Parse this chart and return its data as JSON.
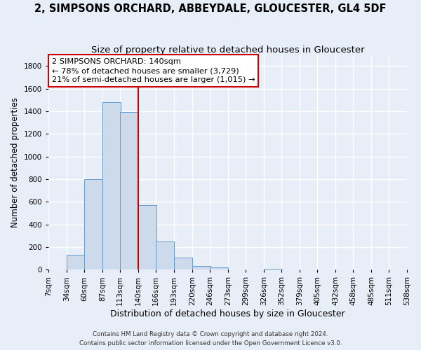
{
  "title": "2, SIMPSONS ORCHARD, ABBEYDALE, GLOUCESTER, GL4 5DF",
  "subtitle": "Size of property relative to detached houses in Gloucester",
  "xlabel": "Distribution of detached houses by size in Gloucester",
  "ylabel": "Number of detached properties",
  "bin_labels": [
    "7sqm",
    "34sqm",
    "60sqm",
    "87sqm",
    "113sqm",
    "140sqm",
    "166sqm",
    "193sqm",
    "220sqm",
    "246sqm",
    "273sqm",
    "299sqm",
    "326sqm",
    "352sqm",
    "379sqm",
    "405sqm",
    "432sqm",
    "458sqm",
    "485sqm",
    "511sqm",
    "538sqm"
  ],
  "bin_edges": [
    7,
    34,
    60,
    87,
    113,
    140,
    166,
    193,
    220,
    246,
    273,
    299,
    326,
    352,
    379,
    405,
    432,
    458,
    485,
    511,
    538
  ],
  "bar_heights": [
    0,
    130,
    800,
    1480,
    1390,
    570,
    250,
    110,
    30,
    20,
    0,
    0,
    5,
    0,
    0,
    0,
    0,
    0,
    0,
    0
  ],
  "bar_color": "#ccdaec",
  "bar_edge_color": "#6699cc",
  "vline_x": 140,
  "vline_color": "#cc0000",
  "annotation_title": "2 SIMPSONS ORCHARD: 140sqm",
  "annotation_line1": "← 78% of detached houses are smaller (3,729)",
  "annotation_line2": "21% of semi-detached houses are larger (1,015) →",
  "annotation_box_facecolor": "#ffffff",
  "annotation_box_edgecolor": "#cc0000",
  "ylim": [
    0,
    1900
  ],
  "yticks": [
    0,
    200,
    400,
    600,
    800,
    1000,
    1200,
    1400,
    1600,
    1800
  ],
  "footer1": "Contains HM Land Registry data © Crown copyright and database right 2024.",
  "footer2": "Contains public sector information licensed under the Open Government Licence v3.0.",
  "background_color": "#e8eef8",
  "grid_color": "#ffffff",
  "title_fontsize": 10.5,
  "subtitle_fontsize": 9.5,
  "tick_fontsize": 7.5,
  "ylabel_fontsize": 8.5,
  "xlabel_fontsize": 9
}
